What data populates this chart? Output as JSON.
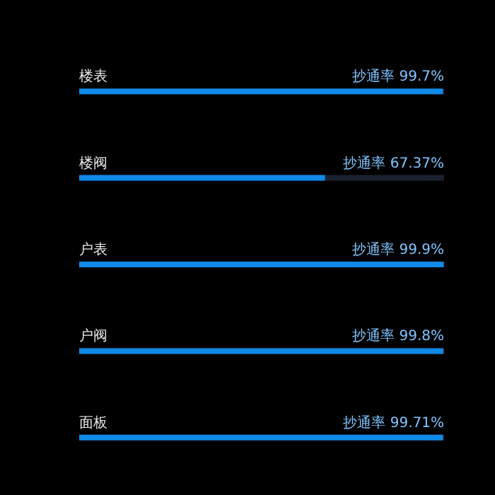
{
  "chart_data": {
    "type": "bar",
    "orientation": "horizontal",
    "categories": [
      "楼表",
      "楼阀",
      "户表",
      "户阀",
      "面板"
    ],
    "values": [
      99.7,
      67.37,
      99.9,
      99.8,
      99.71
    ],
    "value_labels": [
      "抄通率 99.7%",
      "抄通率 67.37%",
      "抄通率 99.9%",
      "抄通率 99.8%",
      "抄通率 99.71%"
    ],
    "color": "#0f8ae8",
    "xlim": [
      0,
      100
    ],
    "tick_labels": "y"
  }
}
